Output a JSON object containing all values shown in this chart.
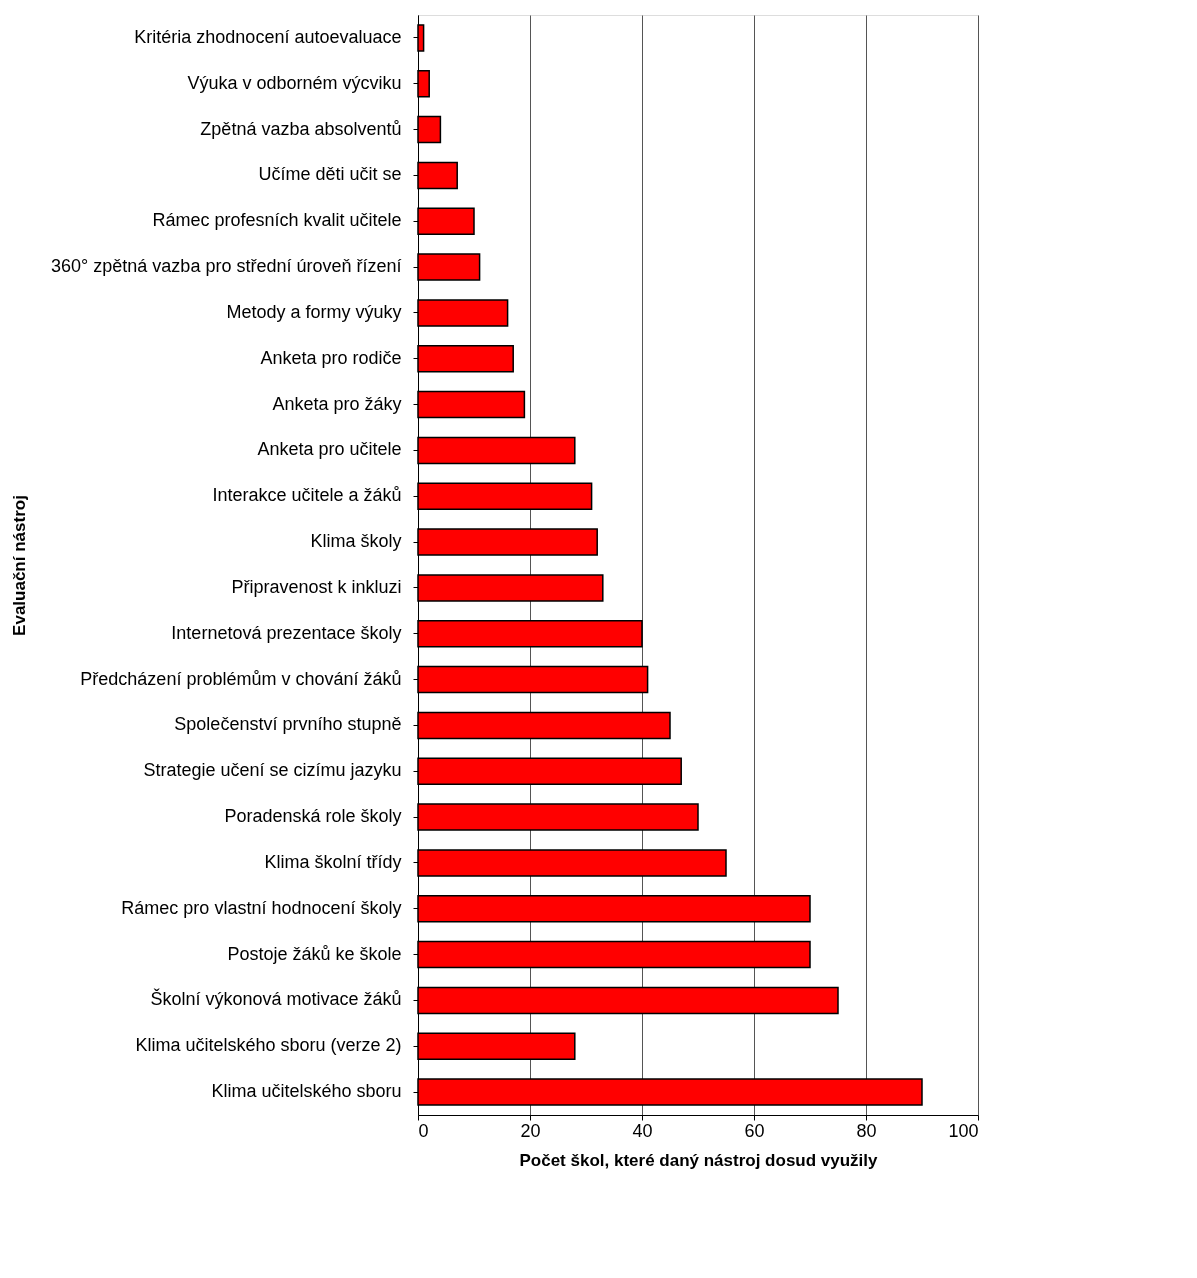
{
  "chart_data": {
    "type": "bar",
    "orientation": "horizontal",
    "xlabel": "Počet škol, které daný nástroj dosud využily",
    "ylabel": "Evaluační nástroj",
    "categories": [
      "Kritéria zhodnocení autoevaluace",
      "Výuka v odborném výcviku",
      "Zpětná vazba absolventů",
      "Učíme děti učit se",
      "Rámec profesních kvalit učitele",
      "360° zpětná vazba pro střední úroveň řízení",
      "Metody a formy výuky",
      "Anketa pro rodiče",
      "Anketa pro žáky",
      "Anketa pro učitele",
      "Interakce učitele a žáků",
      "Klima školy",
      "Připravenost k inkluzi",
      "Internetová prezentace školy",
      "Předcházení problémům v chování žáků",
      "Společenství prvního stupně",
      "Strategie učení se cizímu jazyku",
      "Poradenská role školy",
      "Klima školní třídy",
      "Rámec pro vlastní hodnocení školy",
      "Postoje žáků ke škole",
      "Školní výkonová motivace žáků",
      "Klima učitelského sboru (verze 2)",
      "Klima učitelského sboru"
    ],
    "values": [
      1,
      2,
      4,
      7,
      10,
      11,
      16,
      17,
      19,
      28,
      31,
      32,
      33,
      40,
      41,
      45,
      47,
      50,
      55,
      70,
      70,
      75,
      28,
      90
    ],
    "color": "#ff0000",
    "xlim": [
      0,
      100
    ],
    "xticks": [
      0,
      20,
      40,
      60,
      80,
      100
    ],
    "grid": "x",
    "legend": false
  }
}
